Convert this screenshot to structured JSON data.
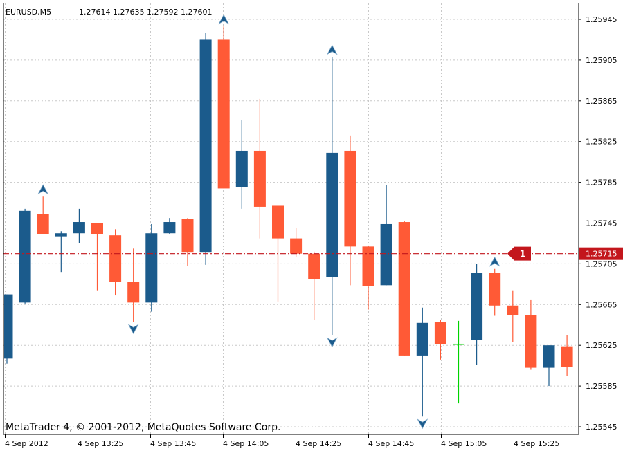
{
  "header": {
    "symbol": "EURUSD,M5",
    "ohlc": "1.27614 1.27635 1.27592 1.27601"
  },
  "copyright": "MetaTrader 4, © 2001-2012, MetaQuotes Software Corp.",
  "colors": {
    "bear": "#1b5b8c",
    "bull": "#ff5a36",
    "doji": "#00d400",
    "grid": "#c8c8c8",
    "level_line": "#c3161c",
    "arrow": "#1b5b8c"
  },
  "price_level": {
    "label": "1.25715",
    "value": 1.25715,
    "order_badge": "1"
  },
  "chart_data": {
    "type": "candlestick",
    "symbol": "EURUSD",
    "timeframe": "M5",
    "y_ticks": [
      "1.25945",
      "1.25905",
      "1.25865",
      "1.25825",
      "1.25785",
      "1.25745",
      "1.25705",
      "1.25665",
      "1.25625",
      "1.25585",
      "1.25545"
    ],
    "x_ticks": [
      "4 Sep 2012",
      "4 Sep 13:25",
      "4 Sep 13:45",
      "4 Sep 14:05",
      "4 Sep 14:25",
      "4 Sep 14:45",
      "4 Sep 15:05",
      "4 Sep 15:25"
    ],
    "ylim": [
      1.25535,
      1.25965
    ],
    "candles": [
      {
        "o": 1.25675,
        "h": 1.25675,
        "l": 1.25607,
        "c": 1.25612,
        "dir": "bear"
      },
      {
        "o": 1.25757,
        "h": 1.25759,
        "l": 1.25666,
        "c": 1.25667,
        "dir": "bear"
      },
      {
        "o": 1.25734,
        "h": 1.25771,
        "l": 1.25734,
        "c": 1.25754,
        "dir": "bull"
      },
      {
        "o": 1.25735,
        "h": 1.25737,
        "l": 1.25697,
        "c": 1.25732,
        "dir": "bear"
      },
      {
        "o": 1.25746,
        "h": 1.25759,
        "l": 1.25725,
        "c": 1.25735,
        "dir": "bear"
      },
      {
        "o": 1.25734,
        "h": 1.25745,
        "l": 1.25679,
        "c": 1.25745,
        "dir": "bull"
      },
      {
        "o": 1.25687,
        "h": 1.25739,
        "l": 1.25674,
        "c": 1.25733,
        "dir": "bull"
      },
      {
        "o": 1.25667,
        "h": 1.2572,
        "l": 1.25648,
        "c": 1.25687,
        "dir": "bull"
      },
      {
        "o": 1.25735,
        "h": 1.25744,
        "l": 1.25658,
        "c": 1.25667,
        "dir": "bear"
      },
      {
        "o": 1.25746,
        "h": 1.2575,
        "l": 1.25734,
        "c": 1.25735,
        "dir": "bear"
      },
      {
        "o": 1.25716,
        "h": 1.2575,
        "l": 1.25703,
        "c": 1.25749,
        "dir": "bull"
      },
      {
        "o": 1.25925,
        "h": 1.25932,
        "l": 1.25704,
        "c": 1.25716,
        "dir": "bear"
      },
      {
        "o": 1.25779,
        "h": 1.25938,
        "l": 1.25779,
        "c": 1.25925,
        "dir": "bull"
      },
      {
        "o": 1.25816,
        "h": 1.25846,
        "l": 1.25759,
        "c": 1.2578,
        "dir": "bear"
      },
      {
        "o": 1.25761,
        "h": 1.25867,
        "l": 1.2573,
        "c": 1.25816,
        "dir": "bull"
      },
      {
        "o": 1.2573,
        "h": 1.25761,
        "l": 1.25668,
        "c": 1.25762,
        "dir": "bull"
      },
      {
        "o": 1.25715,
        "h": 1.2574,
        "l": 1.25712,
        "c": 1.2573,
        "dir": "bull"
      },
      {
        "o": 1.2569,
        "h": 1.25717,
        "l": 1.2565,
        "c": 1.25715,
        "dir": "bull"
      },
      {
        "o": 1.25814,
        "h": 1.25908,
        "l": 1.25635,
        "c": 1.25692,
        "dir": "bear"
      },
      {
        "o": 1.25722,
        "h": 1.25831,
        "l": 1.25684,
        "c": 1.25816,
        "dir": "bull"
      },
      {
        "o": 1.25683,
        "h": 1.25723,
        "l": 1.2566,
        "c": 1.25722,
        "dir": "bull"
      },
      {
        "o": 1.25744,
        "h": 1.25782,
        "l": 1.25684,
        "c": 1.25684,
        "dir": "bear"
      },
      {
        "o": 1.25615,
        "h": 1.25747,
        "l": 1.25615,
        "c": 1.25746,
        "dir": "bull"
      },
      {
        "o": 1.25647,
        "h": 1.25662,
        "l": 1.25555,
        "c": 1.25615,
        "dir": "bear"
      },
      {
        "o": 1.25626,
        "h": 1.2565,
        "l": 1.25611,
        "c": 1.25648,
        "dir": "bull"
      },
      {
        "o": 1.25626,
        "h": 1.25649,
        "l": 1.25568,
        "c": 1.25626,
        "dir": "doji"
      },
      {
        "o": 1.25696,
        "h": 1.25705,
        "l": 1.25606,
        "c": 1.2563,
        "dir": "bear"
      },
      {
        "o": 1.25664,
        "h": 1.257,
        "l": 1.25654,
        "c": 1.25696,
        "dir": "bull"
      },
      {
        "o": 1.25655,
        "h": 1.25679,
        "l": 1.25628,
        "c": 1.25664,
        "dir": "bull"
      },
      {
        "o": 1.25603,
        "h": 1.2567,
        "l": 1.25601,
        "c": 1.25655,
        "dir": "bull"
      },
      {
        "o": 1.25625,
        "h": 1.25625,
        "l": 1.25585,
        "c": 1.25603,
        "dir": "bear"
      },
      {
        "o": 1.25604,
        "h": 1.25635,
        "l": 1.25595,
        "c": 1.25624,
        "dir": "bull"
      }
    ],
    "fractal_markers": [
      {
        "candle": 2,
        "kind": "up"
      },
      {
        "candle": 7,
        "kind": "down"
      },
      {
        "candle": 12,
        "kind": "up"
      },
      {
        "candle": 18,
        "kind": "up"
      },
      {
        "candle": 18,
        "kind": "down"
      },
      {
        "candle": 23,
        "kind": "down"
      },
      {
        "candle": 27,
        "kind": "up"
      }
    ]
  }
}
